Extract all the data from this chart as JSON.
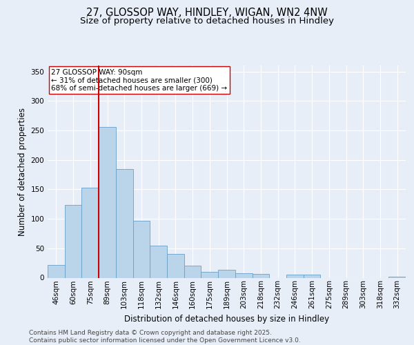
{
  "title1": "27, GLOSSOP WAY, HINDLEY, WIGAN, WN2 4NW",
  "title2": "Size of property relative to detached houses in Hindley",
  "xlabel": "Distribution of detached houses by size in Hindley",
  "ylabel": "Number of detached properties",
  "categories": [
    "46sqm",
    "60sqm",
    "75sqm",
    "89sqm",
    "103sqm",
    "118sqm",
    "132sqm",
    "146sqm",
    "160sqm",
    "175sqm",
    "189sqm",
    "203sqm",
    "218sqm",
    "232sqm",
    "246sqm",
    "261sqm",
    "275sqm",
    "289sqm",
    "303sqm",
    "318sqm",
    "332sqm"
  ],
  "values": [
    22,
    124,
    153,
    256,
    184,
    97,
    54,
    40,
    21,
    10,
    13,
    8,
    6,
    0,
    5,
    5,
    0,
    0,
    0,
    0,
    2
  ],
  "bar_color": "#bad4ea",
  "bar_edge_color": "#6a9fc8",
  "vline_x_index": 3,
  "vline_color": "#cc0000",
  "annotation_text": "27 GLOSSOP WAY: 90sqm\n← 31% of detached houses are smaller (300)\n68% of semi-detached houses are larger (669) →",
  "annotation_box_color": "#ffffff",
  "annotation_box_edge": "#cc0000",
  "bg_color": "#e8eef8",
  "plot_bg_color": "#e8eef8",
  "grid_color": "#ffffff",
  "ylim": [
    0,
    360
  ],
  "yticks": [
    0,
    50,
    100,
    150,
    200,
    250,
    300,
    350
  ],
  "footer_text": "Contains HM Land Registry data © Crown copyright and database right 2025.\nContains public sector information licensed under the Open Government Licence v3.0.",
  "title_fontsize": 10.5,
  "subtitle_fontsize": 9.5,
  "axis_label_fontsize": 8.5,
  "tick_fontsize": 7.5,
  "annotation_fontsize": 7.5,
  "footer_fontsize": 6.5
}
